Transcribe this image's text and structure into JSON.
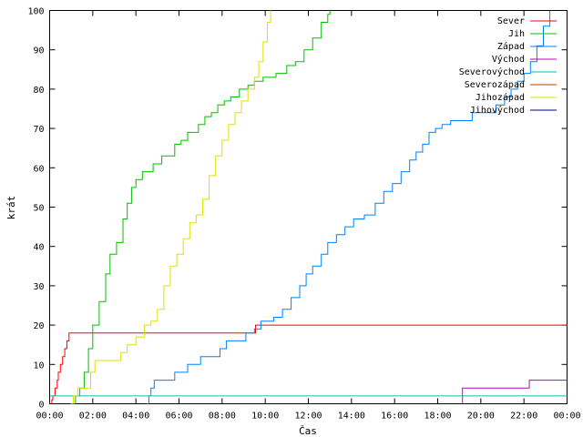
{
  "chart_data": {
    "type": "line",
    "title": "",
    "xlabel": "Čas",
    "ylabel": "krát",
    "xlim": [
      0,
      24
    ],
    "ylim": [
      0,
      100
    ],
    "x_ticks": [
      {
        "value": 0,
        "label": "00:00"
      },
      {
        "value": 2,
        "label": "02:00"
      },
      {
        "value": 4,
        "label": "04:00"
      },
      {
        "value": 6,
        "label": "06:00"
      },
      {
        "value": 8,
        "label": "08:00"
      },
      {
        "value": 10,
        "label": "10:00"
      },
      {
        "value": 12,
        "label": "12:00"
      },
      {
        "value": 14,
        "label": "14:00"
      },
      {
        "value": 16,
        "label": "16:00"
      },
      {
        "value": 18,
        "label": "18:00"
      },
      {
        "value": 20,
        "label": "20:00"
      },
      {
        "value": 22,
        "label": "22:00"
      },
      {
        "value": 24,
        "label": "00:00"
      }
    ],
    "y_ticks": [
      0,
      10,
      20,
      30,
      40,
      50,
      60,
      70,
      80,
      90,
      100
    ],
    "grid": false,
    "legend_position": "top-right",
    "series": [
      {
        "name": "Sever",
        "color": "#ff0000",
        "points": [
          [
            0,
            0
          ],
          [
            0.1,
            1
          ],
          [
            0.15,
            2
          ],
          [
            0.25,
            4
          ],
          [
            0.35,
            6
          ],
          [
            0.4,
            8
          ],
          [
            0.5,
            10
          ],
          [
            0.6,
            12
          ],
          [
            0.7,
            14
          ],
          [
            0.8,
            16
          ],
          [
            0.9,
            18
          ],
          [
            9.5,
            18
          ],
          [
            9.55,
            20
          ],
          [
            24,
            20
          ]
        ]
      },
      {
        "name": "Jih",
        "color": "#00c000",
        "points": [
          [
            1.05,
            0
          ],
          [
            1.2,
            2
          ],
          [
            1.4,
            4
          ],
          [
            1.6,
            8
          ],
          [
            1.8,
            14
          ],
          [
            2.0,
            20
          ],
          [
            2.3,
            26
          ],
          [
            2.6,
            33
          ],
          [
            2.8,
            38
          ],
          [
            3.1,
            41
          ],
          [
            3.4,
            47
          ],
          [
            3.6,
            51
          ],
          [
            3.8,
            55
          ],
          [
            4.0,
            57
          ],
          [
            4.3,
            59
          ],
          [
            4.6,
            59
          ],
          [
            4.8,
            61
          ],
          [
            5.2,
            63
          ],
          [
            5.5,
            63
          ],
          [
            5.8,
            66
          ],
          [
            6.1,
            67
          ],
          [
            6.4,
            69
          ],
          [
            6.7,
            69
          ],
          [
            6.9,
            71
          ],
          [
            7.2,
            73
          ],
          [
            7.5,
            74
          ],
          [
            7.8,
            76
          ],
          [
            8.1,
            77
          ],
          [
            8.4,
            78
          ],
          [
            8.8,
            80
          ],
          [
            9.2,
            81
          ],
          [
            9.5,
            82
          ],
          [
            9.9,
            83
          ],
          [
            10.5,
            84
          ],
          [
            11.0,
            86
          ],
          [
            11.4,
            87
          ],
          [
            11.8,
            90
          ],
          [
            12.2,
            93
          ],
          [
            12.6,
            97
          ],
          [
            12.9,
            99
          ],
          [
            13.0,
            100
          ]
        ]
      },
      {
        "name": "Západ",
        "color": "#0080ff",
        "points": [
          [
            4.5,
            0
          ],
          [
            4.6,
            2
          ],
          [
            4.7,
            4
          ],
          [
            4.85,
            6
          ],
          [
            5.5,
            6
          ],
          [
            5.8,
            8
          ],
          [
            6.2,
            8
          ],
          [
            6.4,
            10
          ],
          [
            6.8,
            10
          ],
          [
            7.0,
            12
          ],
          [
            7.6,
            12
          ],
          [
            7.9,
            14
          ],
          [
            8.2,
            16
          ],
          [
            8.9,
            16
          ],
          [
            9.1,
            18
          ],
          [
            9.5,
            19
          ],
          [
            9.8,
            21
          ],
          [
            10.4,
            22
          ],
          [
            10.8,
            24
          ],
          [
            11.2,
            27
          ],
          [
            11.6,
            30
          ],
          [
            11.9,
            33
          ],
          [
            12.2,
            35
          ],
          [
            12.6,
            38
          ],
          [
            12.9,
            41
          ],
          [
            13.3,
            43
          ],
          [
            13.7,
            45
          ],
          [
            14.1,
            47
          ],
          [
            14.6,
            48
          ],
          [
            15.1,
            51
          ],
          [
            15.5,
            54
          ],
          [
            15.9,
            56
          ],
          [
            16.3,
            59
          ],
          [
            16.7,
            62
          ],
          [
            17.0,
            64
          ],
          [
            17.3,
            66
          ],
          [
            17.6,
            69
          ],
          [
            17.9,
            70
          ],
          [
            18.2,
            71
          ],
          [
            18.6,
            72
          ],
          [
            19.4,
            72
          ],
          [
            19.6,
            74
          ],
          [
            20.4,
            74
          ],
          [
            20.7,
            76
          ],
          [
            21.1,
            78
          ],
          [
            21.4,
            80
          ],
          [
            21.7,
            82
          ],
          [
            22.0,
            84
          ],
          [
            22.3,
            87
          ],
          [
            22.6,
            91
          ],
          [
            22.9,
            96
          ],
          [
            23.2,
            100
          ]
        ]
      },
      {
        "name": "Východ",
        "color": "#c000c0",
        "points": [
          [
            19.1,
            0
          ],
          [
            19.15,
            4
          ],
          [
            22.2,
            4
          ],
          [
            22.25,
            6
          ],
          [
            24,
            6
          ]
        ]
      },
      {
        "name": "Severovýchod",
        "color": "#00c0c0",
        "points": [
          [
            0,
            2
          ],
          [
            24,
            2
          ]
        ]
      },
      {
        "name": "Severozápad",
        "color": "#c04000",
        "points": []
      },
      {
        "name": "Jihozápad",
        "color": "#e0e000",
        "points": [
          [
            0.95,
            0
          ],
          [
            1.1,
            2
          ],
          [
            1.3,
            4
          ],
          [
            1.75,
            4
          ],
          [
            1.9,
            8
          ],
          [
            2.1,
            11
          ],
          [
            3.1,
            11
          ],
          [
            3.3,
            13
          ],
          [
            3.6,
            15
          ],
          [
            4.0,
            17
          ],
          [
            4.4,
            20
          ],
          [
            4.7,
            21
          ],
          [
            5.0,
            24
          ],
          [
            5.3,
            30
          ],
          [
            5.6,
            35
          ],
          [
            5.9,
            38
          ],
          [
            6.2,
            42
          ],
          [
            6.5,
            46
          ],
          [
            6.8,
            48
          ],
          [
            7.1,
            52
          ],
          [
            7.4,
            58
          ],
          [
            7.7,
            63
          ],
          [
            8.0,
            67
          ],
          [
            8.3,
            71
          ],
          [
            8.6,
            74
          ],
          [
            8.9,
            77
          ],
          [
            9.2,
            80
          ],
          [
            9.5,
            83
          ],
          [
            9.7,
            87
          ],
          [
            9.9,
            92
          ],
          [
            10.1,
            97
          ],
          [
            10.25,
            100
          ]
        ]
      },
      {
        "name": "Jihovýchod",
        "color": "#000080",
        "points": []
      }
    ]
  }
}
